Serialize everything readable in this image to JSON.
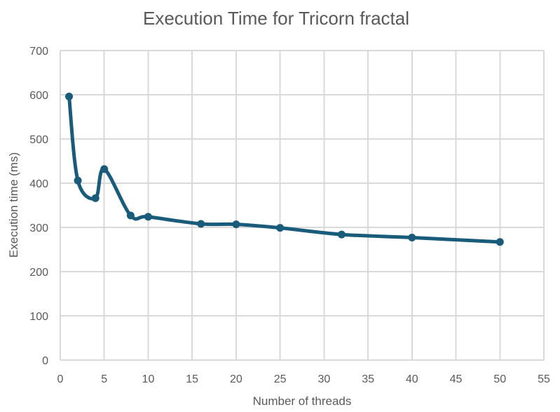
{
  "chart_data": {
    "type": "line",
    "title": "Execution Time for Tricorn fractal",
    "xlabel": "Number of threads",
    "ylabel": "Execution time (ms)",
    "xlim": [
      0,
      55
    ],
    "ylim": [
      0,
      700
    ],
    "x_ticks": [
      0,
      5,
      10,
      15,
      20,
      25,
      30,
      35,
      40,
      45,
      50,
      55
    ],
    "y_ticks": [
      0,
      100,
      200,
      300,
      400,
      500,
      600,
      700
    ],
    "grid": true,
    "legend": "none",
    "smooth": true,
    "series": [
      {
        "color": "#195B7A",
        "points": [
          {
            "x": 1,
            "y": 596
          },
          {
            "x": 2,
            "y": 406
          },
          {
            "x": 4,
            "y": 366
          },
          {
            "x": 5,
            "y": 432
          },
          {
            "x": 8,
            "y": 327
          },
          {
            "x": 10,
            "y": 324
          },
          {
            "x": 16,
            "y": 308
          },
          {
            "x": 20,
            "y": 307
          },
          {
            "x": 25,
            "y": 299
          },
          {
            "x": 32,
            "y": 284
          },
          {
            "x": 40,
            "y": 277
          },
          {
            "x": 50,
            "y": 267
          }
        ]
      }
    ]
  }
}
